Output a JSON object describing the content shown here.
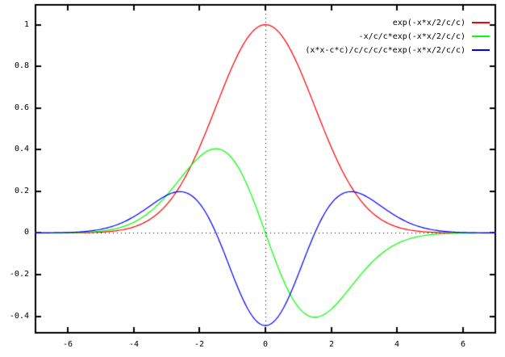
{
  "page": {
    "background": "#ffffff",
    "text_color": "#000000",
    "border_color": "#000000"
  },
  "chart_data": {
    "type": "line",
    "title": "",
    "xlabel": "",
    "ylabel": "",
    "grid": false,
    "legend_position": "top-right-inside",
    "zeroaxis": {
      "style": "dotted",
      "color": "#000000"
    },
    "xlim": [
      -7,
      7
    ],
    "ylim": [
      -0.483,
      1.099
    ],
    "x_ticks": {
      "values": [
        -6,
        -4,
        -2,
        0,
        2,
        4,
        6
      ],
      "labels": [
        "-6",
        "-4",
        "-2",
        "0",
        "2",
        "4",
        "6"
      ]
    },
    "y_ticks": {
      "values": [
        1,
        0.8,
        0.6,
        0.4,
        0.2,
        0,
        -0.2,
        -0.4
      ],
      "labels": [
        "1",
        "0.8",
        "0.6",
        "0.4",
        "0.2",
        "0",
        "-0.2",
        "-0.4"
      ]
    },
    "params": {
      "c": 1.5
    },
    "sample_x": [
      -7,
      -6.5,
      -6,
      -5.5,
      -5,
      -4.5,
      -4,
      -3.5,
      -3,
      -2.5,
      -2,
      -1.5,
      -1,
      -0.5,
      0,
      0.5,
      1,
      1.5,
      2,
      2.5,
      3,
      3.5,
      4,
      4.5,
      5,
      5.5,
      6,
      6.5,
      7
    ],
    "series": [
      {
        "label": "exp(-x*x/2/c/c)",
        "color": "#ff0000",
        "fn": "gauss",
        "values": [
          0.0,
          0.0001,
          0.0003,
          0.0012,
          0.0039,
          0.0111,
          0.0286,
          0.0657,
          0.1353,
          0.2494,
          0.4111,
          0.6065,
          0.8007,
          0.946,
          1.0,
          0.946,
          0.8007,
          0.6065,
          0.4111,
          0.2494,
          0.1353,
          0.0657,
          0.0286,
          0.0111,
          0.0039,
          0.0012,
          0.0003,
          0.0001,
          0.0
        ]
      },
      {
        "label": "-x/c/c*exp(-x*x/2/c/c)",
        "color": "#00ff00",
        "fn": "gauss_d1",
        "values": [
          0.0001,
          0.0002,
          0.0009,
          0.0029,
          0.0086,
          0.0222,
          0.0508,
          0.1022,
          0.1805,
          0.2771,
          0.3654,
          0.4043,
          0.3559,
          0.2102,
          0.0,
          -0.2102,
          -0.3559,
          -0.4043,
          -0.3654,
          -0.2771,
          -0.1805,
          -0.1022,
          -0.0508,
          -0.0222,
          -0.0086,
          -0.0029,
          -0.0009,
          -0.0002,
          -0.0001
        ]
      },
      {
        "label": "(x*x-c*c)/c/c/c/c*exp(-x*x/2/c/c)",
        "color": "#0000ff",
        "fn": "gauss_d2",
        "values": [
          0.0002,
          0.0007,
          0.0022,
          0.0066,
          0.0174,
          0.0395,
          0.0776,
          0.1298,
          0.1805,
          0.197,
          0.1421,
          0.0,
          -0.1977,
          -0.3737,
          -0.4444,
          -0.3737,
          -0.1977,
          0.0,
          0.1421,
          0.197,
          0.1805,
          0.1298,
          0.0776,
          0.0395,
          0.0174,
          0.0066,
          0.0022,
          0.0007,
          0.0002
        ]
      }
    ]
  }
}
